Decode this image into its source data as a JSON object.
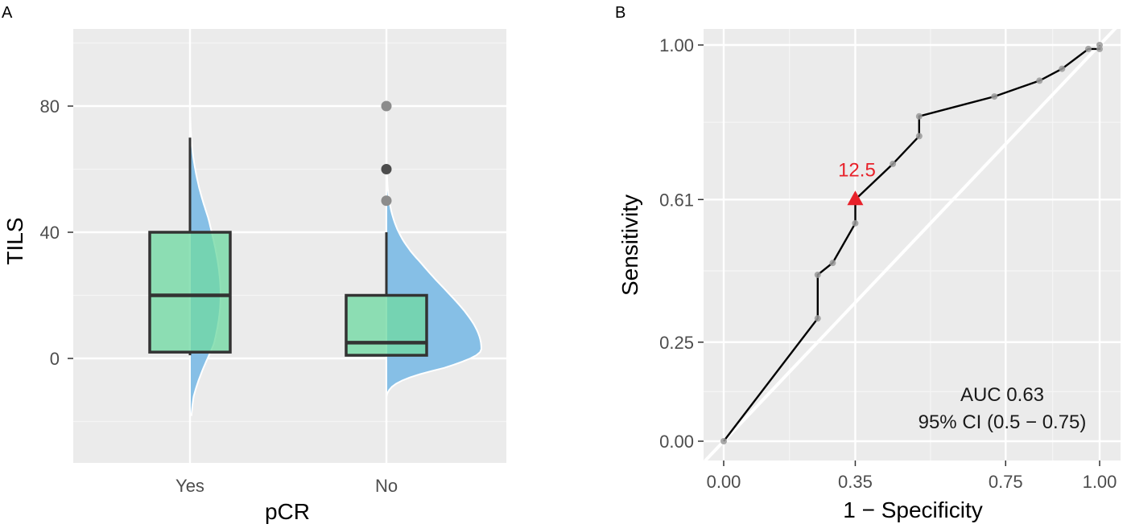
{
  "panels": {
    "a_label": "A",
    "b_label": "B"
  },
  "chart_data": [
    {
      "type": "box",
      "panel": "A",
      "xlabel": "pCR",
      "ylabel": "TILS",
      "categories": [
        "Yes",
        "No"
      ],
      "ylim": [
        -30,
        100
      ],
      "yticks": [
        0,
        40,
        80
      ],
      "grid": true,
      "box_color": "#71d9a3",
      "density_color": "#86bfe6",
      "boxes": [
        {
          "category": "Yes",
          "min": 1,
          "q1": 2,
          "median": 20,
          "q3": 40,
          "max": 70,
          "outliers": []
        },
        {
          "category": "No",
          "min": 1,
          "q1": 1,
          "median": 5,
          "q3": 20,
          "max": 40,
          "outliers": [
            80,
            60,
            50
          ]
        }
      ]
    },
    {
      "type": "line",
      "panel": "B",
      "xlabel": "1 − Specificity",
      "ylabel": "Sensitivity",
      "xticks": [
        "0.00",
        "0.35",
        "0.75",
        "1.00"
      ],
      "yticks": [
        "0.00",
        "0.25",
        "0.61",
        "1.00"
      ],
      "xlim": [
        0,
        1
      ],
      "ylim": [
        0,
        1
      ],
      "grid": true,
      "roc_points": [
        [
          0.0,
          0.0
        ],
        [
          0.25,
          0.31
        ],
        [
          0.25,
          0.42
        ],
        [
          0.29,
          0.45
        ],
        [
          0.35,
          0.55
        ],
        [
          0.35,
          0.61
        ],
        [
          0.45,
          0.7
        ],
        [
          0.52,
          0.77
        ],
        [
          0.52,
          0.82
        ],
        [
          0.72,
          0.87
        ],
        [
          0.84,
          0.91
        ],
        [
          0.9,
          0.94
        ],
        [
          0.97,
          0.99
        ],
        [
          1.0,
          0.99
        ],
        [
          1.0,
          1.0
        ]
      ],
      "cutoff": {
        "label": "12.5",
        "x": 0.35,
        "y": 0.61,
        "color": "#e8212a"
      },
      "annotations": [
        "AUC 0.63",
        "95% CI (0.5 − 0.75)"
      ]
    }
  ]
}
